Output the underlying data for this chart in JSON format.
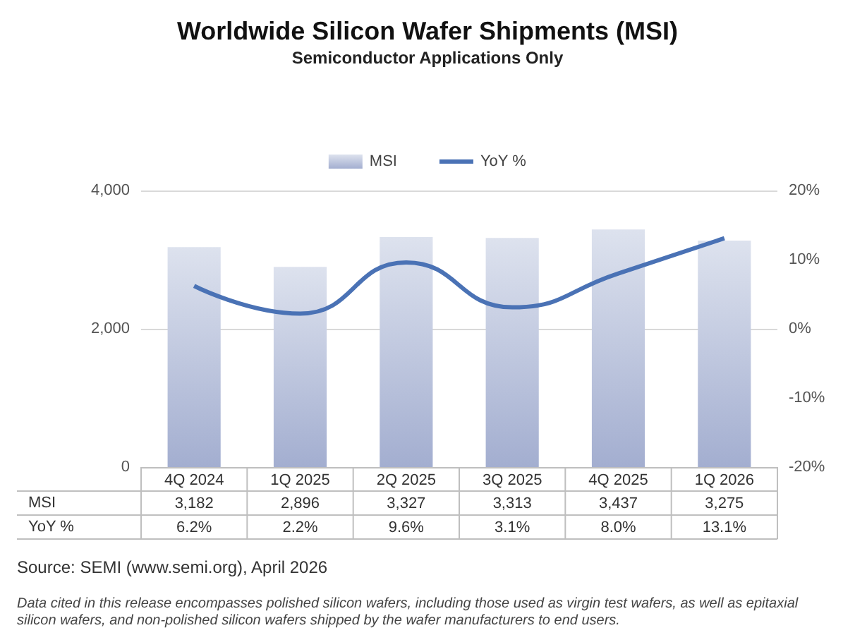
{
  "chart_data": {
    "type": "bar",
    "title": "Worldwide Silicon Wafer Shipments (MSI)",
    "subtitle": "Semiconductor Applications Only",
    "categories": [
      "4Q 2024",
      "1Q 2025",
      "2Q 2025",
      "3Q 2025",
      "4Q 2025",
      "1Q 2026"
    ],
    "series": [
      {
        "name": "MSI",
        "color": "#a3aed0",
        "values": [
          3182,
          2896,
          3327,
          3313,
          3437,
          3275
        ],
        "value_labels": [
          "3,182",
          "2,896",
          "3,327",
          "3,313",
          "3,437",
          "3,275"
        ]
      },
      {
        "name": "YoY %",
        "type": "line",
        "axis": "y2",
        "color": "#4a72b5",
        "values": [
          6.2,
          2.2,
          9.6,
          3.1,
          8.0,
          13.1
        ],
        "value_labels": [
          "6.2%",
          "2.2%",
          "9.6%",
          "3.1%",
          "8.0%",
          "13.1%"
        ]
      }
    ],
    "ylim": [
      0,
      4000
    ],
    "yticks": [
      0,
      {
        "value": 2000,
        "label": "2,000"
      },
      {
        "value": 4000,
        "label": "4,000"
      }
    ],
    "y2lim": [
      -20,
      20
    ],
    "y2ticks": [
      {
        "value": -20,
        "label": "-20%"
      },
      {
        "value": -10,
        "label": "-10%"
      },
      {
        "value": 0,
        "label": "0%"
      },
      {
        "value": 10,
        "label": "10%"
      },
      {
        "value": 20,
        "label": "20%"
      }
    ],
    "grid": "y",
    "legend": "top",
    "marker": "none",
    "annotations": [
      "Source: SEMI (www.semi.org), April 2026",
      "Data cited in this release encompasses polished silicon wafers, including those used as virgin test wafers, as well as epitaxial silicon wafers, and non-polished silicon wafers shipped by the wafer manufacturers to end users."
    ]
  }
}
